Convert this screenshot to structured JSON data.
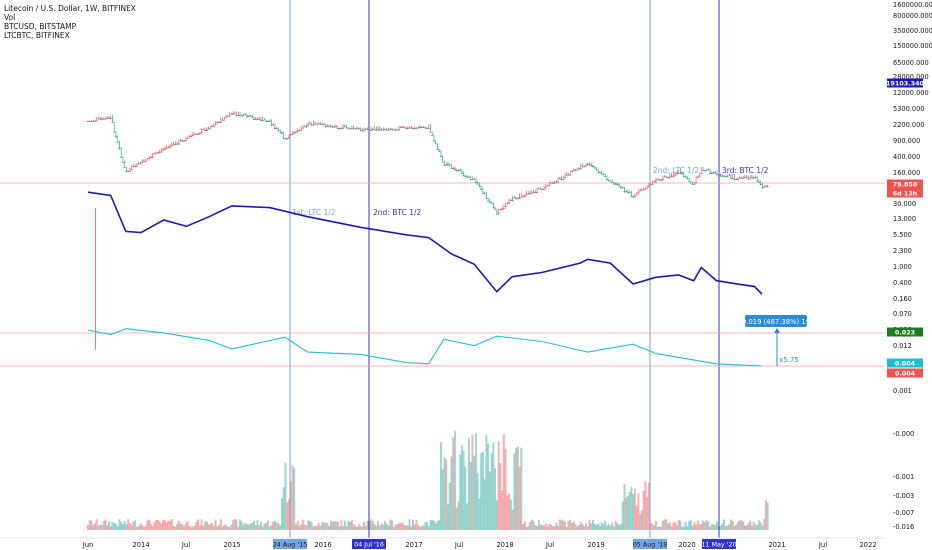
{
  "legend": {
    "main": "Litecoin / U.S. Dollar, 1W, BITFINEX",
    "vol": "Vol",
    "btc": "BTCUSD, BITSTAMP",
    "ltcbtc": "LTCBTC, BITFINEX"
  },
  "colors": {
    "btc_line": "#1b1bb3",
    "ltcbtc_line": "#1fbfd1",
    "up": "#26a69a",
    "down": "#ef5350",
    "vline_light": "#6fa6e3",
    "vline_dark": "#3434c9",
    "hline": "#f4a3a3",
    "grid": "#f0f3fa"
  },
  "chart_data": {
    "type": "line",
    "y_scale": "log",
    "x_ticks": [
      "Jun",
      "2014",
      "Jul",
      "2015",
      "2016",
      "2017",
      "Jul",
      "2018",
      "Jul",
      "2019",
      "2020",
      "2021",
      "Jul",
      "2022"
    ],
    "y_ticks_upper": [
      "1600000.000",
      "800000.000",
      "350000.000",
      "150000.000",
      "65000.000",
      "28000.000",
      "12000.000",
      "5300.000",
      "2200.000",
      "900.000",
      "400.000",
      "160.000",
      "70.000",
      "30.000",
      "13.000",
      "5.500",
      "2.300",
      "1.000",
      "0.400",
      "0.160",
      "0.070",
      "0.030",
      "0.012",
      "0.005",
      "0.001"
    ],
    "y_ticks_volume": [
      "-0.000",
      "-0.001",
      "-0.003",
      "-0.007",
      "-0.016"
    ],
    "price_tags": [
      {
        "label": "19103.340",
        "color": "#1b1bb3"
      },
      {
        "label": "79.850",
        "color": "#ef5350"
      },
      {
        "label": "6d 13h",
        "color": "#ef5350"
      },
      {
        "label": "0.023",
        "color": "#1e7b1e"
      },
      {
        "label": "0.004",
        "color": "#1fbfd1"
      },
      {
        "label": "0.004",
        "color": "#ef5350"
      }
    ],
    "series": [
      {
        "name": "BTCUSD, BITSTAMP",
        "values": [
          [
            "2013-06",
            110
          ],
          [
            "2013-09",
            130
          ],
          [
            "2013-11",
            800
          ],
          [
            "2014-01",
            850
          ],
          [
            "2014-04",
            450
          ],
          [
            "2014-07",
            620
          ],
          [
            "2014-10",
            380
          ],
          [
            "2015-01",
            220
          ],
          [
            "2015-06",
            240
          ],
          [
            "2015-11",
            380
          ],
          [
            "2016-06",
            650
          ],
          [
            "2016-12",
            950
          ],
          [
            "2017-03",
            1100
          ],
          [
            "2017-06",
            2500
          ],
          [
            "2017-09",
            4200
          ],
          [
            "2017-12",
            17000
          ],
          [
            "2018-02",
            8000
          ],
          [
            "2018-06",
            6400
          ],
          [
            "2018-11",
            4000
          ],
          [
            "2018-12",
            3300
          ],
          [
            "2019-03",
            4000
          ],
          [
            "2019-06",
            11500
          ],
          [
            "2019-09",
            8200
          ],
          [
            "2019-12",
            7300
          ],
          [
            "2020-02",
            9800
          ],
          [
            "2020-03",
            5000
          ],
          [
            "2020-05",
            9700
          ],
          [
            "2020-08",
            11700
          ],
          [
            "2020-10",
            13000
          ],
          [
            "2020-11",
            19103
          ]
        ]
      },
      {
        "name": "LTCUSD, BITFINEX",
        "values": [
          [
            "2013-06",
            3.0
          ],
          [
            "2013-09",
            2.5
          ],
          [
            "2013-11",
            40
          ],
          [
            "2013-12",
            30
          ],
          [
            "2014-04",
            12
          ],
          [
            "2014-07",
            7
          ],
          [
            "2014-10",
            4
          ],
          [
            "2015-01",
            2.0
          ],
          [
            "2015-06",
            3.0
          ],
          [
            "2015-08",
            7
          ],
          [
            "2015-11",
            3.3
          ],
          [
            "2016-06",
            4.5
          ],
          [
            "2016-12",
            4.2
          ],
          [
            "2017-03",
            4.0
          ],
          [
            "2017-05",
            25
          ],
          [
            "2017-09",
            60
          ],
          [
            "2017-12",
            300
          ],
          [
            "2018-02",
            150
          ],
          [
            "2018-06",
            90
          ],
          [
            "2018-12",
            25
          ],
          [
            "2019-03",
            60
          ],
          [
            "2019-06",
            130
          ],
          [
            "2019-09",
            60
          ],
          [
            "2019-12",
            40
          ],
          [
            "2020-02",
            70
          ],
          [
            "2020-03",
            35
          ],
          [
            "2020-08",
            55
          ],
          [
            "2020-10",
            50
          ],
          [
            "2020-11",
            79.85
          ]
        ]
      },
      {
        "name": "LTCBTC, BITFINEX",
        "values": [
          [
            "2013-06",
            0.028
          ],
          [
            "2013-09",
            0.022
          ],
          [
            "2013-11",
            0.03
          ],
          [
            "2014-04",
            0.024
          ],
          [
            "2014-10",
            0.016
          ],
          [
            "2015-01",
            0.01
          ],
          [
            "2015-08",
            0.019
          ],
          [
            "2015-11",
            0.0085
          ],
          [
            "2016-06",
            0.0075
          ],
          [
            "2016-12",
            0.0048
          ],
          [
            "2017-03",
            0.0045
          ],
          [
            "2017-05",
            0.017
          ],
          [
            "2017-09",
            0.012
          ],
          [
            "2017-12",
            0.02
          ],
          [
            "2018-06",
            0.015
          ],
          [
            "2018-12",
            0.0085
          ],
          [
            "2019-06",
            0.013
          ],
          [
            "2019-09",
            0.0078
          ],
          [
            "2020-05",
            0.0045
          ],
          [
            "2020-11",
            0.004
          ]
        ]
      }
    ],
    "vertical_markers": [
      {
        "date_label": "24 Aug '15",
        "note": "1st: LTC 1/2"
      },
      {
        "date_label": "04 Jul '16",
        "note": "2nd: BTC 1/2"
      },
      {
        "date_label": "05 Aug '19",
        "note": "2nd: LTC 1/2"
      },
      {
        "date_label": "11 May '20",
        "note": "3rd: BTC 1/2"
      }
    ],
    "measure_label": "0.019 (467.38%) 19",
    "ratio_label": "x5.75",
    "grid": false
  }
}
